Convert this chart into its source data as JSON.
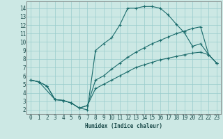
{
  "xlabel": "Humidex (Indice chaleur)",
  "bg_color": "#cce8e4",
  "grid_color": "#99cccc",
  "line_color": "#1a6b6b",
  "xlim": [
    -0.5,
    23.5
  ],
  "ylim": [
    1.5,
    14.8
  ],
  "xticks": [
    0,
    1,
    2,
    3,
    4,
    5,
    6,
    7,
    8,
    9,
    10,
    11,
    12,
    13,
    14,
    15,
    16,
    17,
    18,
    19,
    20,
    21,
    22,
    23
  ],
  "yticks": [
    2,
    3,
    4,
    5,
    6,
    7,
    8,
    9,
    10,
    11,
    12,
    13,
    14
  ],
  "series": [
    {
      "x": [
        0,
        1,
        3,
        4,
        5,
        6,
        7,
        8,
        9,
        10,
        11,
        12,
        13,
        14,
        15,
        16,
        17,
        18,
        19,
        20,
        21,
        22,
        23
      ],
      "y": [
        5.5,
        5.3,
        3.2,
        3.1,
        2.8,
        2.2,
        2.0,
        9.0,
        9.8,
        10.5,
        12.0,
        14.0,
        14.0,
        14.2,
        14.2,
        14.0,
        13.2,
        12.1,
        11.1,
        9.5,
        9.8,
        8.5,
        7.5
      ]
    },
    {
      "x": [
        0,
        1,
        2,
        3,
        4,
        5,
        6,
        7,
        8,
        9,
        10,
        11,
        12,
        13,
        14,
        15,
        16,
        17,
        18,
        19,
        20,
        21,
        22,
        23
      ],
      "y": [
        5.5,
        5.3,
        4.8,
        3.2,
        3.1,
        2.8,
        2.2,
        2.5,
        5.5,
        6.0,
        6.8,
        7.5,
        8.2,
        8.8,
        9.3,
        9.8,
        10.2,
        10.6,
        11.0,
        11.3,
        11.6,
        11.8,
        8.5,
        7.5
      ]
    },
    {
      "x": [
        0,
        1,
        2,
        3,
        4,
        5,
        6,
        7,
        8,
        9,
        10,
        11,
        12,
        13,
        14,
        15,
        16,
        17,
        18,
        19,
        20,
        21,
        22,
        23
      ],
      "y": [
        5.5,
        5.3,
        4.8,
        3.2,
        3.1,
        2.8,
        2.2,
        2.5,
        4.5,
        5.0,
        5.5,
        6.0,
        6.5,
        7.0,
        7.3,
        7.6,
        7.9,
        8.1,
        8.3,
        8.5,
        8.7,
        8.8,
        8.5,
        7.5
      ]
    }
  ]
}
